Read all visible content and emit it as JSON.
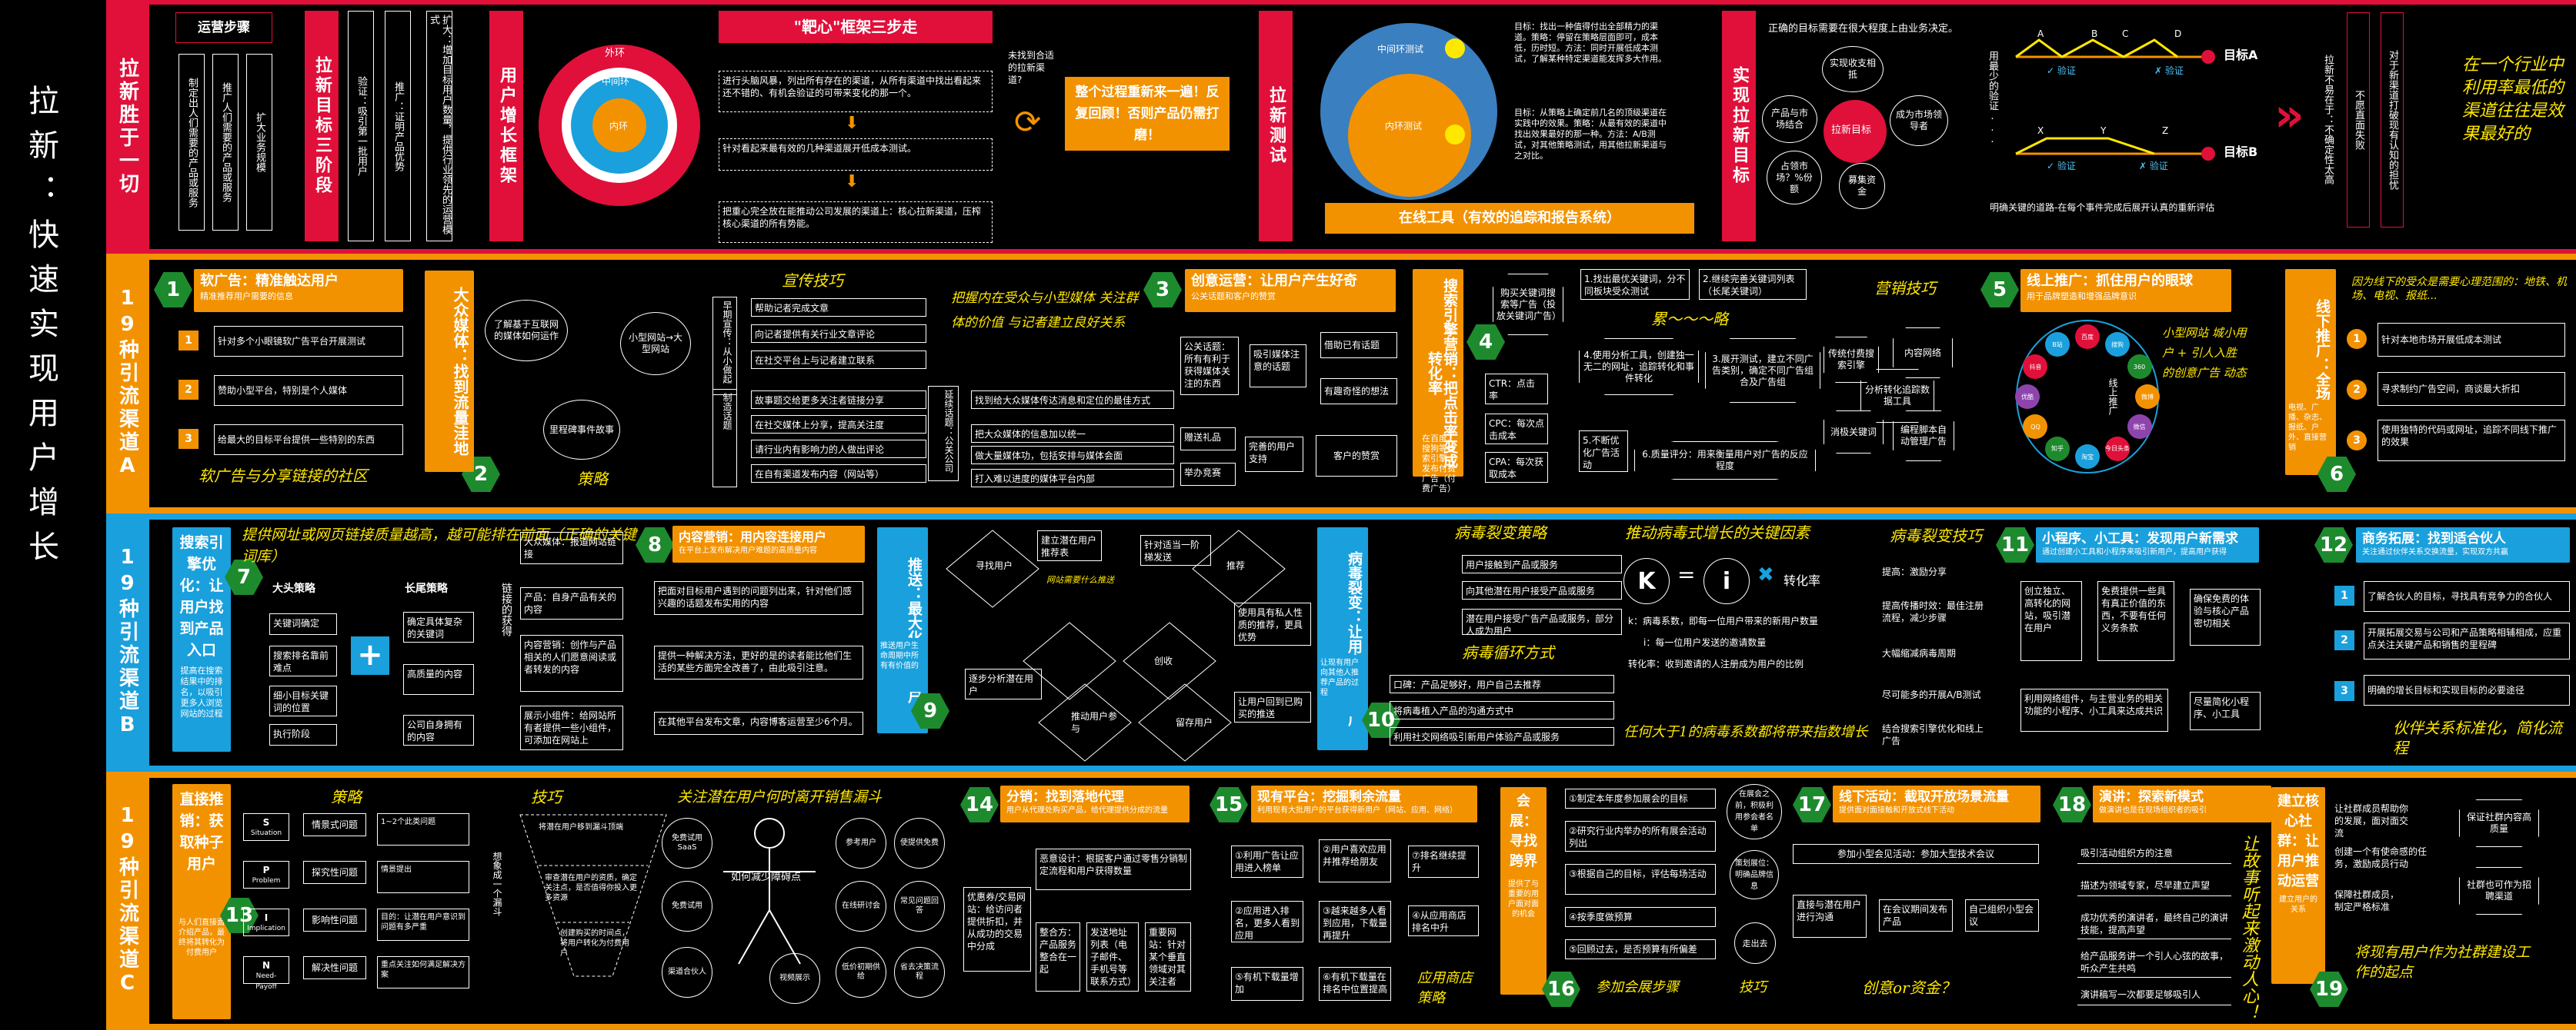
{
  "title": "拉新：快速实现用户增长",
  "bands": {
    "top": "拉新胜于一切",
    "a": "19种引流渠道A",
    "b": "19种引流渠道B",
    "c": "19种引流渠道C"
  },
  "top": {
    "steps_title": "运营步骤",
    "steps": [
      "制定出人们需要的产品或服务",
      "推广人们需要的产品或服务",
      "扩大业务规模"
    ],
    "goal_label": "拉新目标三阶段",
    "goals": [
      "验证：吸引第一批用户",
      "推广：证明产品优势",
      "扩大：增加目标用户数量，提供行业领先的运营模式"
    ],
    "growth_label": "用户增长框架",
    "rings": {
      "outer": "外环",
      "middle": "中间环",
      "inner": "内环"
    },
    "bullseye_title": "\"靶心\"框架三步走",
    "bullseye_steps": [
      "进行头脑风暴，列出所有存在的渠道，从所有渠道中找出看起来还不错的、有机会验证的可带来变化的那一个。",
      "针对看起来最有效的几种渠道展开低成本测试。",
      "把重心完全放在能推动公司发展的渠道上：核心拉新渠道，压榨核心渠道的所有势能。"
    ],
    "unfound": "未找到合适的拉新渠道?",
    "repeat": "整个过程重新来一遍！反复回顾！否则产品仍需打磨！",
    "test_label": "拉新测试",
    "test_rings": {
      "outer": "中间环测试",
      "inner": "内环测试"
    },
    "test_notes": [
      "目标：找出一种值得付出全部精力的渠道。策略：停留在策略层面即可，成本低，历时短。方法：同时开展低成本测试，了解某种特定渠道能发挥多大作用。",
      "目标：从策略上确定前几名的顶级渠道在实践中的效果。策略：从最有效的渠道中找出效果最好的那一种。方法：A/B测试，对其他策略测试，用其他拉新渠道与之对比。"
    ],
    "tool": "在线工具（有效的追踪和报告系统）",
    "achieve_label": "实现拉新目标",
    "achieve_q": "正确的目标需要在很大程度上由业务决定。",
    "hub": "拉新目标",
    "hub_items": [
      "实现收支相抵",
      "成为市场领导者",
      "募集资金",
      "占领市场？%份额",
      "产品与市场结合"
    ],
    "path_labels": [
      "A",
      "B",
      "C",
      "D",
      "X",
      "Y",
      "Z"
    ],
    "verify": "验证",
    "goalA": "目标A",
    "goalB": "目标B",
    "min_cost": "用最少的验证...",
    "path_note": "明确关键的道路-在每个事件完成后展开认真的重新评估",
    "right_boxes": [
      "拉新不易在于：不确定性太高",
      "不愿直面失败",
      "对于新渠道打破现有认知的担忧"
    ],
    "right_hand": "在一个行业中利用率最低的渠道往往是效果最好的"
  },
  "a": {
    "c1_title": "软广告：精准触达用户",
    "c1_sub": "精准推荐用户需要的信息",
    "c1_items": [
      "针对多个小眼镜软广告平台开展测试",
      "赞助小型平台，特别是个人媒体",
      "给最大的目标平台提供一些特别的东西"
    ],
    "c1_hand": "软广告与分享链接的社区",
    "c2_label": "大众媒体：找到流量洼地",
    "c2_sub": "新闻媒体接触点",
    "c2_circles": [
      "了解基于互联网的媒体如何运作",
      "小型网站→大型网站",
      "里程碑事件故事"
    ],
    "c2_strategy": "策略",
    "c2_skill": "宣传技巧",
    "c2_early": "早期宣传：从小做起",
    "c2_tips": [
      "帮助记者完成文章",
      "向记者提供有关行业文章评论",
      "在社交平台上与记者建立联系"
    ],
    "c2_story": "制造话题",
    "c2_story_items": [
      "故事题交给更多关注者链接分享",
      "在社交媒体上分享，提高关注度",
      "请行业内有影响力的人做出评论",
      "在自有渠道发布内容（网站等）"
    ],
    "c2_pr": "延续话题：公关公司",
    "c2_pr_items": [
      "找到给大众媒体传达消息和定位的最佳方式",
      "把大众媒体的信息加以统一",
      "做大量媒体功，包括安排与媒体会面",
      "打入难以进度的媒体平台内部"
    ],
    "c2_hand": "把握内在受众与小型媒体 关注群体的价值 与记者建立良好关系",
    "c3_title": "创意运营：让用户产生好奇",
    "c3_sub": "公关话题和客户的赞赏",
    "c3_items": [
      "公关话题：所有有利于获得媒体关注的东西",
      "吸引媒体注意的话题",
      "借助已有话题",
      "有趣奇怪的想法",
      "赠送礼品",
      "完善的用户支持",
      "客户的赞赏",
      "举办竞赛"
    ],
    "c4_label": "搜索引擎营销：把点击率变成转化率",
    "c4_sub": "在百度、搜狗等搜索引擎上发布付费广告（付费广告）",
    "c4_metrics": [
      "CTR：点击率",
      "CPC：每次点击成本",
      "CPA：每次获取成本"
    ],
    "c4_steps": [
      "1.找出最优关键词，分不同板块受众测试",
      "2.继续完善关键词列表（长尾关键词）",
      "3.展开测试，建立不同广告类别，确定不同广告组合及广告组",
      "4.使用分析工具，创建独一无二的网址，追踪转化和事件转化",
      "5.不断优化广告活动",
      "6.质量评分：用来衡量用户对广告的反应程度",
      "购买关键词搜索等广告（投放关键词广告）"
    ],
    "c4_hand": "累～～～略",
    "c4_skill": "营销技巧",
    "c4_skills": [
      "传统付费搜索引擎",
      "内容网络",
      "分析转化追踪数据工具",
      "消极关键词",
      "编程脚本自动管理广告"
    ],
    "c5_title": "线上推广：抓住用户的眼球",
    "c5_sub": "用于品牌塑造和增强品牌意识",
    "c5_center": "线上推广",
    "c5_apps": [
      "百度",
      "搜狗",
      "360",
      "微博",
      "微信",
      "今日头条",
      "淘宝",
      "知乎",
      "QQ",
      "优酷",
      "抖音",
      "B站"
    ],
    "c5_hand": "小型网站 城小用户 + 引人入胜的创意广告 动态",
    "c6_label": "线下推广：全场景运营",
    "c6_sub": "电视、广播、杂志、报纸、户外、直接营销",
    "c6_hand": "因为线下的受众是需要心理范围的：地铁、机场、电视、报纸...",
    "c6_items": [
      "针对本地市场开展低成本测试",
      "寻求制约广告空间，商谈最大折扣",
      "使用独特的代码或网址，追踪不同线下推广的效果"
    ]
  },
  "b": {
    "c7_label": "搜索引擎优化：让用户找到产品入口",
    "c7_sub": "提高在搜索结果中的排名，以吸引更多人浏览网站的过程",
    "c7_hand": "提供网址或网页链接质量越高，越可能排在前面（正确的关键词库）",
    "c7_big": "大头策略",
    "c7_big_items": [
      "关键词确定",
      "搜索排名靠前难点",
      "细小目标关键词的位置",
      "执行阶段"
    ],
    "c7_long": "长尾策略",
    "c7_long_items": [
      "确定具体复杂的关键词",
      "高质量的内容",
      "公司自身拥有的内容"
    ],
    "c7_link": "链接的获得",
    "c8_title": "内容营销：用内容连接用户",
    "c8_sub": "在平台上发布解决用户难题的高质量内容",
    "c8_items": [
      "大众媒体：报道网站链接",
      "产品：自身产品有关的内容",
      "内容营销：创作与产品相关的人们愿意阅读或者转发的内容",
      "展示小组件：给网站所有者提供一些小组件，可添加在网站上"
    ],
    "c8_steps": [
      "把面对目标用户遇到的问题列出来，针对他们感兴趣的话题发布实用的内容",
      "提供一种解决方法，更好的是的读者能比他们生活的某些方面完全改善了，由此吸引注意。",
      "在其他平台发布文章，内容博客运营至少6个月。"
    ],
    "c9_label": "推送：最大化获得用户",
    "c9_sub": "推送用户生命周期中所有有价值的",
    "c9_flow": [
      "寻找用户",
      "建立潜在用户推荐表",
      "针对适当一阶梯发送",
      "推荐",
      "创收",
      "留存用户",
      "推动用户参与",
      "逐步分析潜在用户",
      "使用具有私人性质的推荐，更具优势",
      "让用户回到已购买的推送"
    ],
    "c9_hand": "网站需要什么推送",
    "c10_label": "病毒裂变：让用户自发推广",
    "c10_sub": "让现有用户向其他人推荐产品的过程",
    "c10_strategy": "病毒裂变策略",
    "c10_items": [
      "用户接触到产品或服务",
      "向其他潜在用户接受产品或服务",
      "潜在用户接受广告产品或服务，部分人成为用户"
    ],
    "c10_hand": "推动病毒式增长的关键因素",
    "c10_k": "K",
    "c10_i": "i",
    "c10_conv": "转化率",
    "c10_formula_notes": [
      "k：病毒系数，即每一位用户带来的新用户数量",
      "i：每一位用户发送的邀请数量",
      "转化率：收到邀请的人注册成为用户的比例"
    ],
    "c10_cycle": "病毒循环方式",
    "c10_cycle_items": [
      "口碑：产品足够好，用户自己去推荐",
      "将病毒植入产品的沟通方式中",
      "利用社交网络吸引新用户体验产品或服务"
    ],
    "c10_hand2": "任何大于1的病毒系数都将带来指数增长",
    "c10_skill": "病毒裂变技巧",
    "c10_skills": [
      "提高：激励分享",
      "提高传播时效：最佳注册流程，减少步骤",
      "大幅缩减病毒周期",
      "尽可能多的开展A/B测试"
    ],
    "c10_skills2": [
      "结合搜索引擎优化和线上广告"
    ],
    "c11_title": "小程序、小工具：发现用户新需求",
    "c11_sub": "通过创建小工具和小程序来吸引新用户，提高用户获得",
    "c11_items": [
      "创立独立、高转化的网站，吸引潜在用户",
      "免费提供一些具有真正价值的东西，不要有任何义务条款",
      "确保免费的体验与核心产品密切相关",
      "利用网络组件，与主营业务的相关功能的小程序、小工具来达成共识",
      "尽量简化小程序、小工具"
    ],
    "c12_title": "商务拓展：找到适合伙人",
    "c12_sub": "关注通过伙伴关系交换流量，实现双方共赢",
    "c12_items": [
      "了解合伙人的目标，寻找具有竞争力的合伙人",
      "开展拓展交易与公司和产品策略相辅相成，应重点关注关键产品和销售的里程碑",
      "明确的增长目标和实现目标的必要途径"
    ],
    "c12_hand": "伙伴关系标准化，简化流程"
  },
  "c": {
    "c13_label": "直接推销：获取种子用户",
    "c13_sub": "与人们直接面介绍产品，最终将其转化为付费用户",
    "c13_strategy": "策略",
    "c13_spin": [
      {
        "k": "S",
        "v": "Situation"
      },
      {
        "k": "P",
        "v": "Problem"
      },
      {
        "k": "I",
        "v": "Implication"
      },
      {
        "k": "N",
        "v": "Need-Payoff"
      }
    ],
    "c13_spin_cn": [
      "情景式问题",
      "探究性问题",
      "影响性问题",
      "解决性问题"
    ],
    "c13_notes": [
      "1~2个此类问题",
      "情景提出",
      "目的：让潜在用户意识到问题有多严重",
      "重点关注如何满足解决方案"
    ],
    "c13_skill": "技巧",
    "c13_funnel": [
      "将潜在用户移到漏斗顶端",
      "审查潜在用户的资质，确定关注点，是否值得你投入更多资源",
      "创建购买的时间点，将用户转化为付费用户"
    ],
    "c13_funnel_side": "想象成一个漏斗",
    "c13_hand": "关注潜在用户何时离开销售漏斗",
    "c13_stick": [
      "免费试用SaaS",
      "免费试用",
      "渠道合伙人",
      "参考用户",
      "在线研讨会",
      "低价初期供给",
      "使提供免费",
      "常见问题回答",
      "视频展示",
      "省去决策流程"
    ],
    "c13_stick_center": "如何减少障碍点",
    "c14_title": "分销：找到落地代理",
    "c14_sub": "用户从代理处购买产品，给代理提供分成的流量",
    "c14_items": [
      "恶意设计：根据客户通过零售分销制定流程和用户获得数量",
      "优惠券/交易网站：给访问者提供折扣，并从成功的交易中分成",
      "整合方：产品服务整合在一起",
      "发送地址列表（电子邮件、手机号等联系方式）",
      "重要网站：针对某个垂直领域对其关注者"
    ],
    "c15_title": "现有平台：挖掘剩余流量",
    "c15_sub": "利用现有大批用户的平台获得新用户（网站、应用、网络）",
    "c15_items": [
      "①利用广告让应用进入榜单",
      "②用户喜欢应用并推荐给朋友",
      "③越来越多人看到应用，下载量再提升",
      "④从应用商店排名中升",
      "⑤有机下载量增加",
      "⑥有机下载量在排名中位置提高",
      "⑦排名继续提升",
      "②应用进入排名，更多人看到应用"
    ],
    "c15_hand": "应用商店策略",
    "c16_label": "会展：寻找跨界",
    "c16_sub": "提供了与重要的用户面对面的机会",
    "c16_items": [
      "①制定本年度参加展会的目标",
      "②研究行业内举办的所有展会活动列出",
      "③根据自己的目标，评估每场活动",
      "④按季度做预算",
      "⑤回顾过去，是否预算有所偏差"
    ],
    "c16_side": [
      "在展会之前，积极利用参会者名单",
      "策划展位：明确品牌信息",
      "走出去"
    ],
    "c16_hand": "参加会展步骤",
    "c16_skill": "技巧",
    "c17_title": "线下活动：截取开放场景流量",
    "c17_sub": "提供面对面接触和开放式线下活动",
    "c17_items": [
      "参加小型会见活动：参加大型技术会议",
      "直接与潜在用户进行沟通",
      "在会议期间发布产品",
      "自己组织小型会议"
    ],
    "c17_hand": "创意or资金？",
    "c18_title": "演讲：探索新模式",
    "c18_sub": "做演讲也是在现场组织者的吸引",
    "c18_items": [
      "吸引活动组织方的注意",
      "描述为领域专家，尽早建立声望",
      "成功优秀的演讲者，最终自己的演讲技能，提高声望",
      "给产品服务讲一个引人心弦的故事，听众产生共鸣",
      "演讲稿写一次都要足够吸引人"
    ],
    "c18_hand": "让故事听起来激动人心！",
    "c19_label": "建立核心社群：让用户推动运营",
    "c19_sub": "建立用户的关系",
    "c19_items": [
      "让社群成员帮助你的发展，面对面交流",
      "创建一个有使命感的任务，激励成员行动",
      "保障社群成员，制定严格标准",
      "保证社群内容高质量",
      "社群也可作为招聘渠道"
    ],
    "c19_hand": "将现有用户作为社群建设工作的起点"
  }
}
